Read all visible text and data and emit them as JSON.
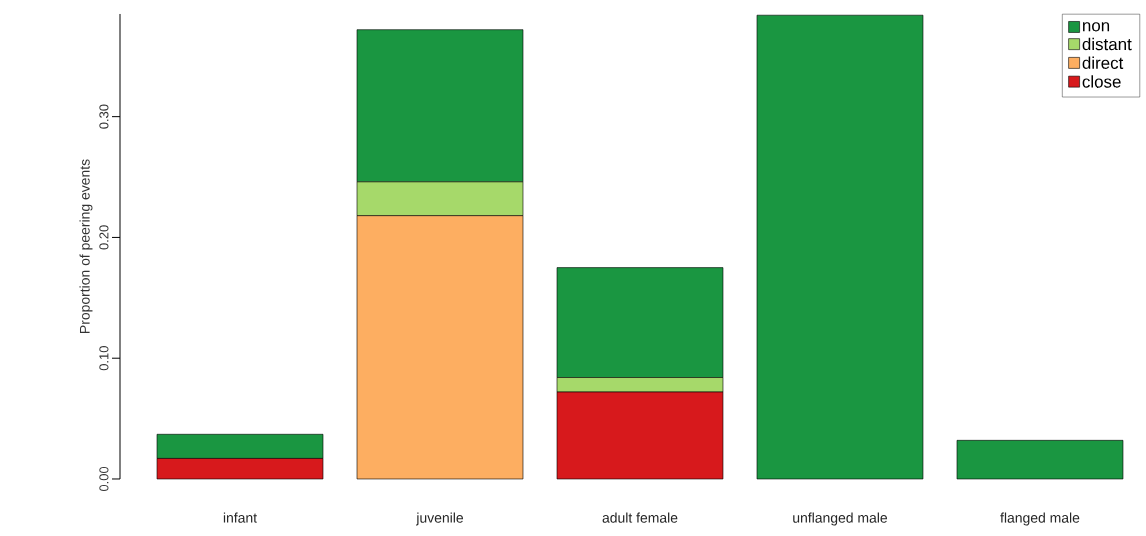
{
  "chart_data": {
    "type": "bar",
    "stacked": true,
    "ylabel": "Proportion of peering events",
    "categories": [
      "infant",
      "juvenile",
      "adult female",
      "unflanged male",
      "flanged male"
    ],
    "series": [
      {
        "name": "close",
        "color": "#d7191c",
        "values": [
          0.017,
          0,
          0.072,
          0,
          0
        ]
      },
      {
        "name": "direct",
        "color": "#fdae61",
        "values": [
          0,
          0.218,
          0,
          0,
          0
        ]
      },
      {
        "name": "distant",
        "color": "#a6d96a",
        "values": [
          0,
          0.028,
          0.012,
          0,
          0
        ]
      },
      {
        "name": "non",
        "color": "#1a9641",
        "values": [
          0.02,
          0.126,
          0.091,
          0.384,
          0.032
        ]
      }
    ],
    "ylim": [
      0,
      0.385
    ],
    "yticks": [
      {
        "value": 0,
        "label": "0.00"
      },
      {
        "value": 0.1,
        "label": "0.10"
      },
      {
        "value": 0.2,
        "label": "0.20"
      },
      {
        "value": 0.3,
        "label": "0.30"
      }
    ],
    "legend": "top right"
  }
}
